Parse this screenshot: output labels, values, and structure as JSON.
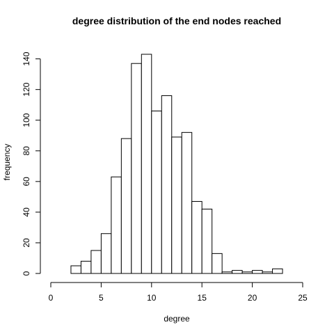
{
  "chart_data": {
    "type": "bar",
    "title": "degree distribution of the end nodes reached",
    "xlabel": "degree",
    "ylabel": "frequency",
    "bin_width": 1,
    "bin_starts": [
      0,
      1,
      2,
      3,
      4,
      5,
      6,
      7,
      8,
      9,
      10,
      11,
      12,
      13,
      14,
      15,
      16,
      17,
      18,
      19,
      20,
      21,
      22,
      23,
      24
    ],
    "values": [
      0,
      0,
      5,
      8,
      15,
      26,
      63,
      88,
      137,
      143,
      106,
      116,
      89,
      92,
      47,
      42,
      13,
      1,
      2,
      1,
      2,
      1,
      3,
      0,
      0
    ],
    "xlim": [
      0,
      25
    ],
    "ylim": [
      0,
      145
    ],
    "x_ticks": [
      0,
      5,
      10,
      15,
      20,
      25
    ],
    "y_ticks": [
      0,
      20,
      40,
      60,
      80,
      100,
      120,
      140
    ],
    "grid": false
  }
}
